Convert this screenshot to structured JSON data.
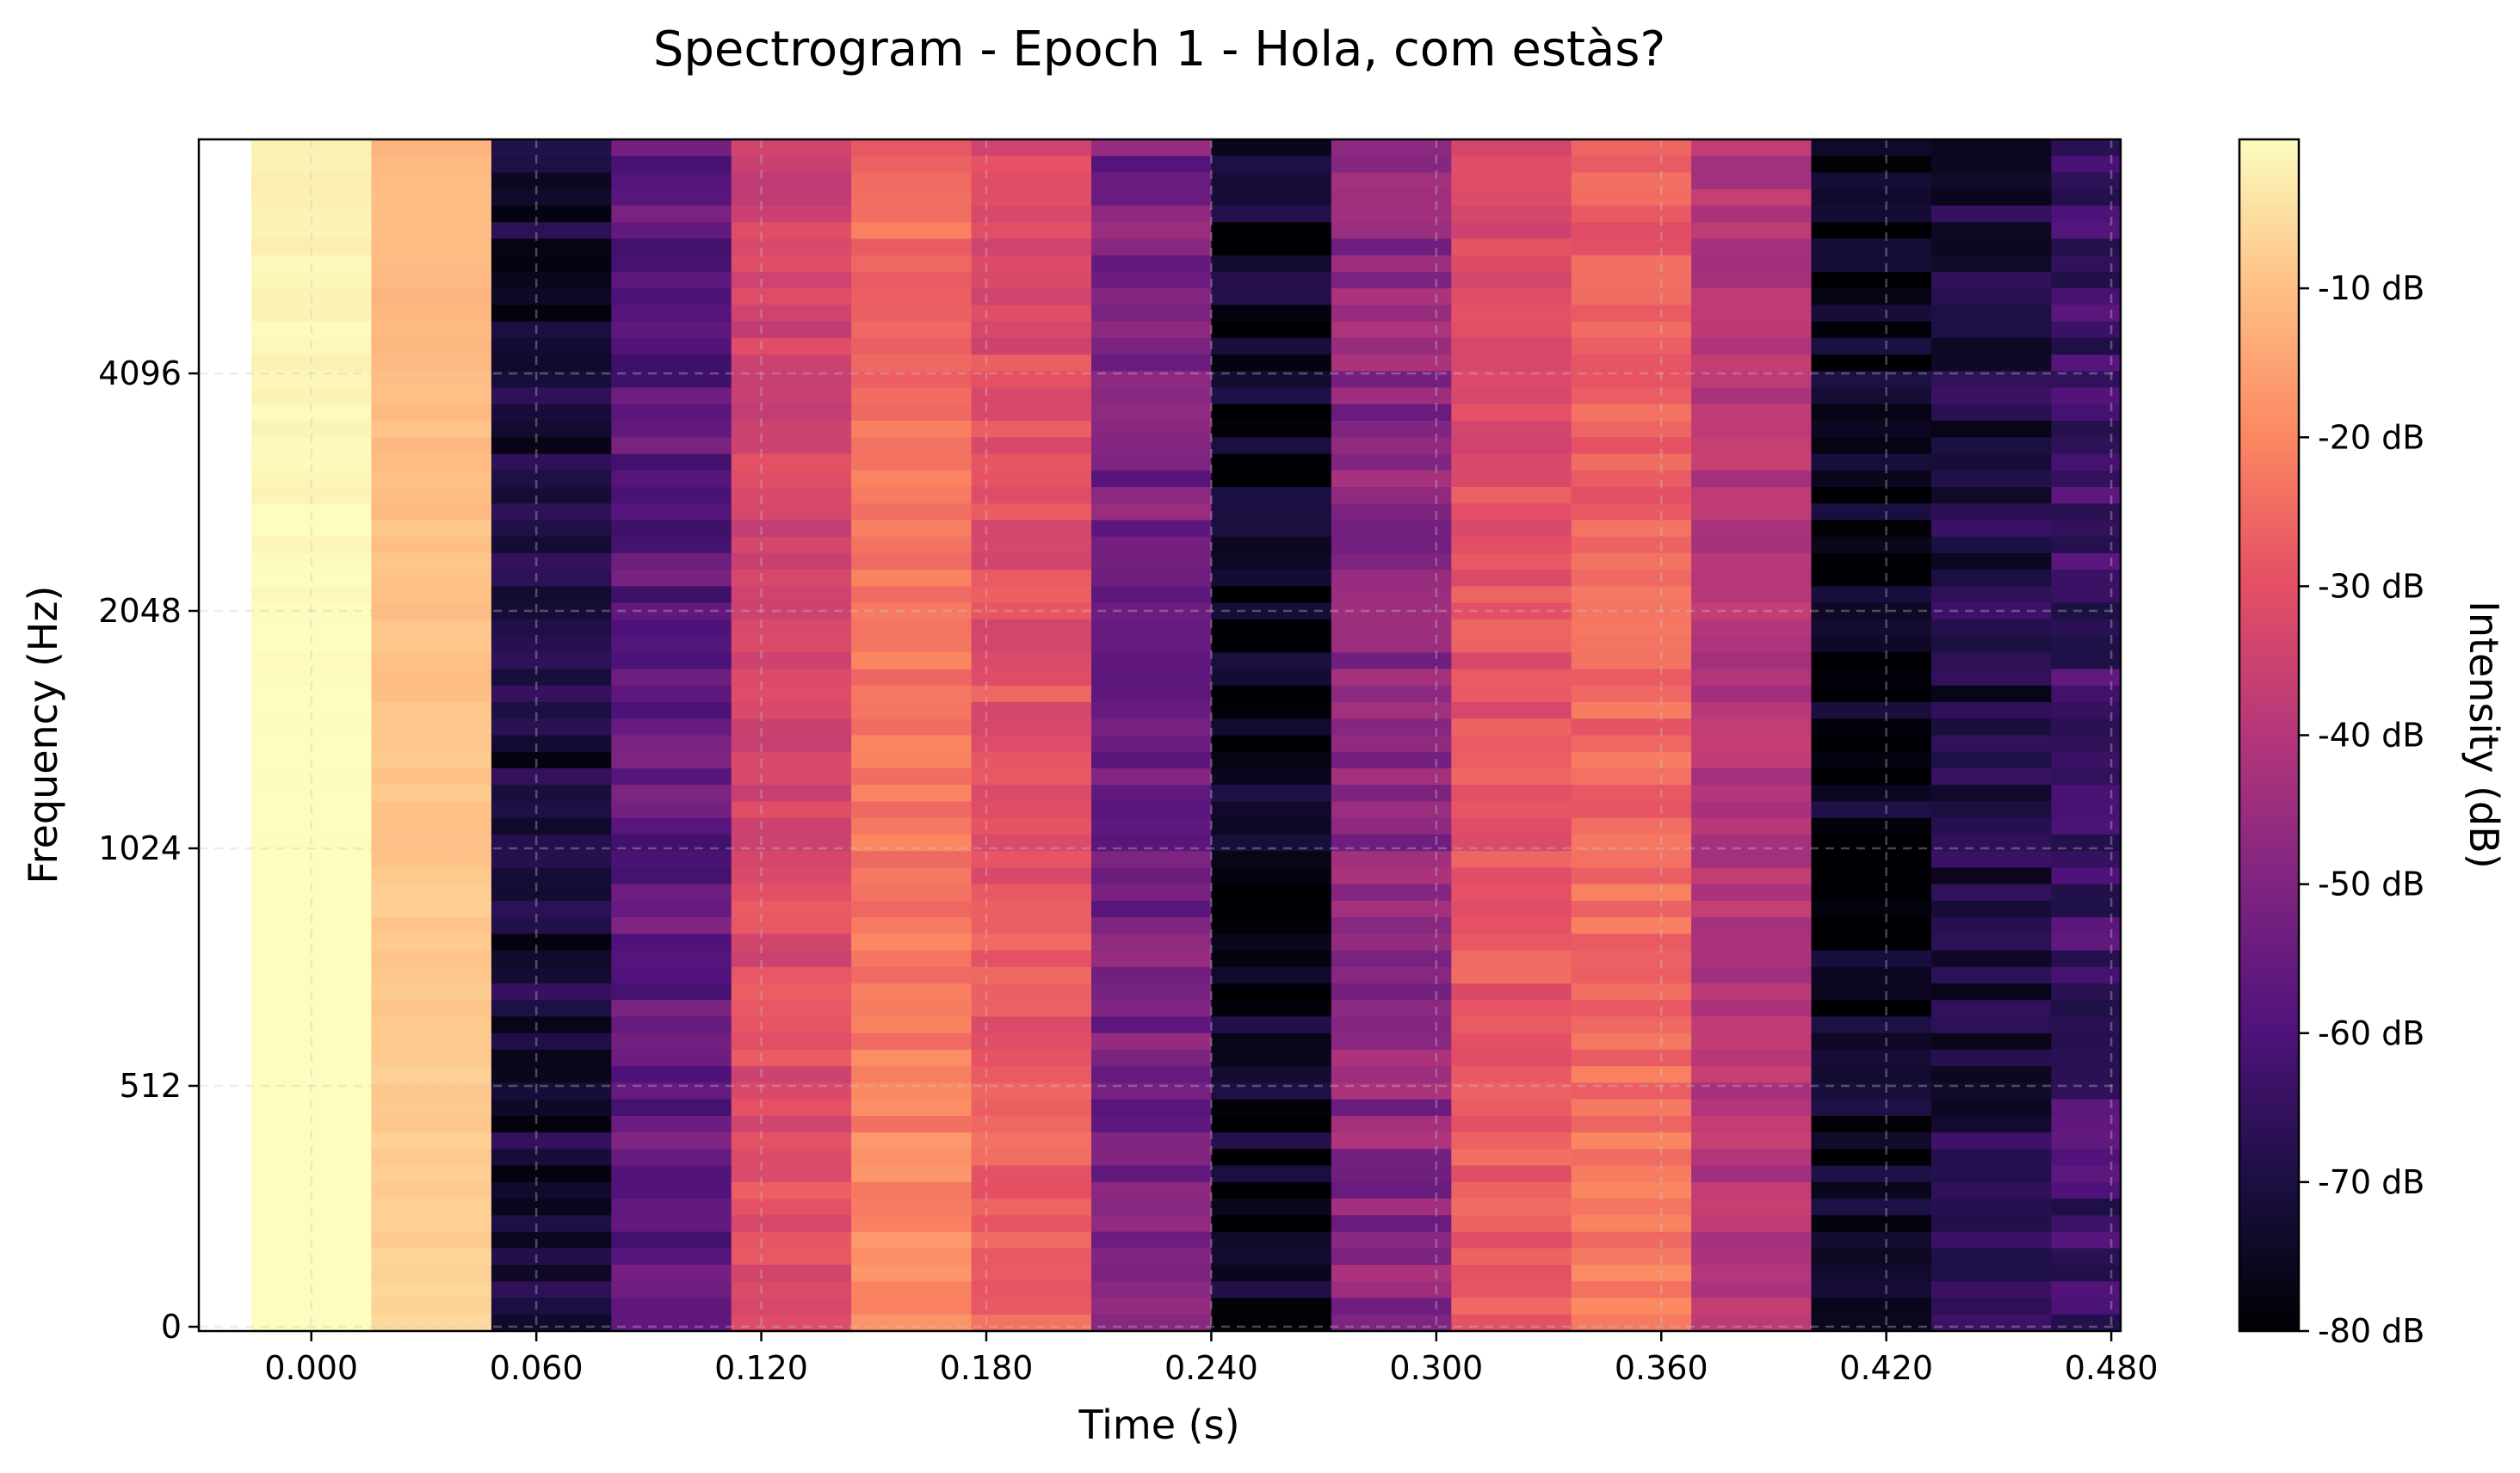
{
  "chart_data": {
    "type": "heatmap",
    "title": "Spectrogram - Epoch 1 - Hola, com estàs?",
    "xlabel": "Time (s)",
    "ylabel": "Frequency (Hz)",
    "colorbar_label": "Intensity (dB)",
    "colormap": "magma",
    "x_ticks": [
      "0.000",
      "0.060",
      "0.120",
      "0.180",
      "0.240",
      "0.300",
      "0.360",
      "0.420",
      "0.480"
    ],
    "x_tick_values": [
      0.0,
      0.06,
      0.12,
      0.18,
      0.24,
      0.3,
      0.36,
      0.42,
      0.48
    ],
    "xlim": [
      -0.03,
      0.4825
    ],
    "y_ticks": [
      "0",
      "512",
      "1024",
      "2048",
      "4096"
    ],
    "y_tick_values": [
      0,
      512,
      1024,
      2048,
      4096
    ],
    "y_scale": "symlog",
    "colorbar_ticks": [
      "-10 dB",
      "-20 dB",
      "-30 dB",
      "-40 dB",
      "-50 dB",
      "-60 dB",
      "-70 dB",
      "-80 dB"
    ],
    "colorbar_tick_values": [
      -10,
      -20,
      -30,
      -40,
      -50,
      -60,
      -70,
      -80
    ],
    "clim": [
      -80,
      0
    ],
    "grid": true,
    "frame_centers_s": [
      0.0,
      0.032,
      0.064,
      0.096,
      0.128,
      0.16,
      0.192,
      0.224,
      0.256,
      0.288,
      0.32,
      0.352,
      0.384,
      0.416,
      0.448,
      0.48
    ],
    "frame_mean_db": [
      -2,
      -12,
      -72,
      -57,
      -35,
      -25,
      -32,
      -52,
      -75,
      -48,
      -32,
      -28,
      -40,
      -76,
      -70,
      -63
    ]
  }
}
